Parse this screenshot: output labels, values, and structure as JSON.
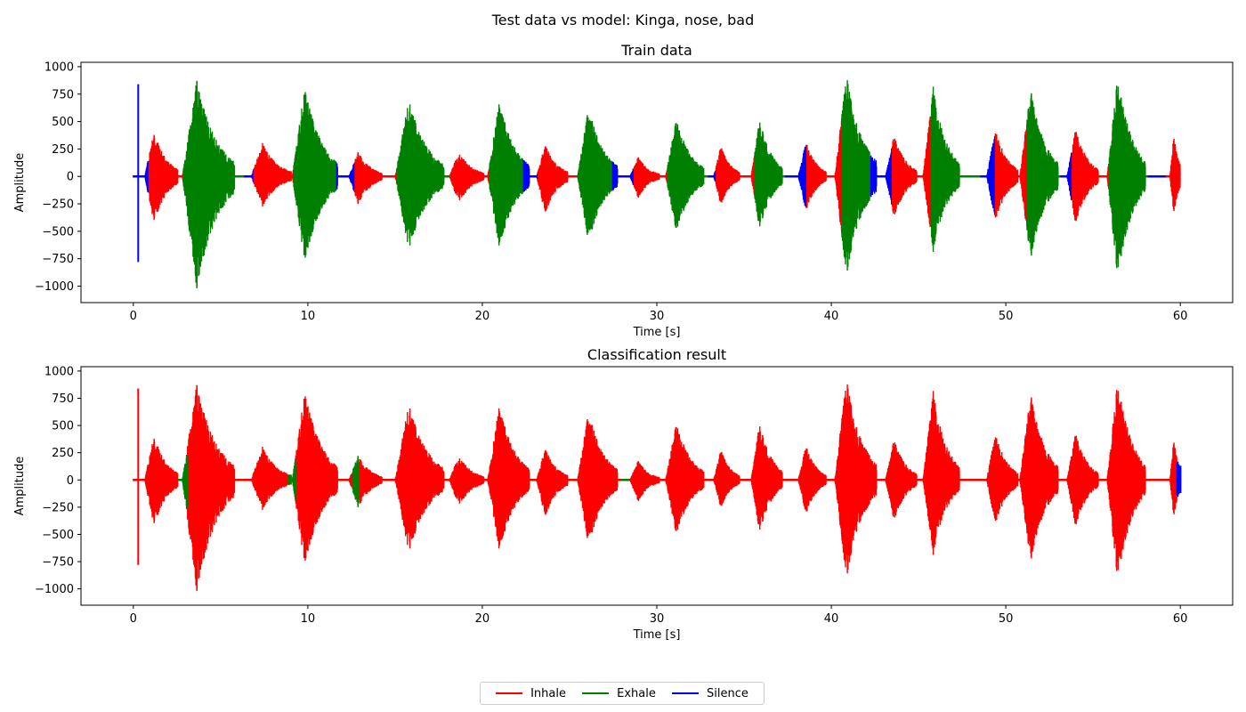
{
  "figure": {
    "title": "Test data vs model: Kinga, nose, bad"
  },
  "legend": {
    "placement": "bottom-center",
    "entries": [
      {
        "key": "inhale",
        "label": "Inhale",
        "color": "#ff0000"
      },
      {
        "key": "exhale",
        "label": "Exhale",
        "color": "#008000"
      },
      {
        "key": "silence",
        "label": "Silence",
        "color": "#0000ff"
      }
    ]
  },
  "chart_data": [
    {
      "type": "line",
      "title": "Train data",
      "xlabel": "Time [s]",
      "ylabel": "Amplitude",
      "xlim": [
        -3,
        63
      ],
      "ylim": [
        -1150,
        1040
      ],
      "xticks": [
        0,
        10,
        20,
        30,
        40,
        50,
        60
      ],
      "yticks": [
        1000,
        750,
        500,
        250,
        0,
        -250,
        -500,
        -750,
        -1000
      ],
      "grid": false,
      "duration": 60,
      "silence_bursts": [
        {
          "t": 0.28,
          "max": 840,
          "min": -780,
          "width": 0.08
        }
      ],
      "segments": [
        {
          "label": "silence",
          "start": 0,
          "end": 0.9
        },
        {
          "label": "inhale",
          "start": 0.9,
          "end": 2.9
        },
        {
          "label": "exhale",
          "start": 2.9,
          "end": 6.3
        },
        {
          "label": "silence",
          "start": 6.3,
          "end": 6.9
        },
        {
          "label": "inhale",
          "start": 6.9,
          "end": 9.2
        },
        {
          "label": "exhale",
          "start": 9.2,
          "end": 11.6
        },
        {
          "label": "silence",
          "start": 11.6,
          "end": 12.7
        },
        {
          "label": "inhale",
          "start": 12.7,
          "end": 15.1
        },
        {
          "label": "exhale",
          "start": 15.1,
          "end": 18.1
        },
        {
          "label": "inhale",
          "start": 18.1,
          "end": 20.4
        },
        {
          "label": "exhale",
          "start": 20.4,
          "end": 22.3
        },
        {
          "label": "silence",
          "start": 22.3,
          "end": 23.2
        },
        {
          "label": "inhale",
          "start": 23.2,
          "end": 25.4
        },
        {
          "label": "exhale",
          "start": 25.4,
          "end": 27.4
        },
        {
          "label": "silence",
          "start": 27.4,
          "end": 28.7
        },
        {
          "label": "inhale",
          "start": 28.7,
          "end": 30.6
        },
        {
          "label": "exhale",
          "start": 30.6,
          "end": 32.9
        },
        {
          "label": "silence",
          "start": 32.9,
          "end": 33.4
        },
        {
          "label": "inhale",
          "start": 33.4,
          "end": 35.6
        },
        {
          "label": "exhale",
          "start": 35.6,
          "end": 37.3
        },
        {
          "label": "silence",
          "start": 37.3,
          "end": 38.6
        },
        {
          "label": "inhale",
          "start": 38.6,
          "end": 40.6
        },
        {
          "label": "exhale",
          "start": 40.6,
          "end": 42.2
        },
        {
          "label": "silence",
          "start": 42.2,
          "end": 43.5
        },
        {
          "label": "inhale",
          "start": 43.5,
          "end": 45.7
        },
        {
          "label": "exhale",
          "start": 45.7,
          "end": 48.5
        },
        {
          "label": "silence",
          "start": 48.5,
          "end": 49.4
        },
        {
          "label": "inhale",
          "start": 49.4,
          "end": 51.2
        },
        {
          "label": "exhale",
          "start": 51.2,
          "end": 53.1
        },
        {
          "label": "silence",
          "start": 53.1,
          "end": 53.8
        },
        {
          "label": "inhale",
          "start": 53.8,
          "end": 55.9
        },
        {
          "label": "exhale",
          "start": 55.9,
          "end": 58.1
        },
        {
          "label": "silence",
          "start": 58.1,
          "end": 59.2
        },
        {
          "label": "inhale",
          "start": 59.2,
          "end": 60
        }
      ]
    },
    {
      "type": "line",
      "title": "Classification result",
      "xlabel": "Time [s]",
      "ylabel": "Amplitude",
      "xlim": [
        -3,
        63
      ],
      "ylim": [
        -1150,
        1040
      ],
      "xticks": [
        0,
        10,
        20,
        30,
        40,
        50,
        60
      ],
      "yticks": [
        1000,
        750,
        500,
        250,
        0,
        -250,
        -500,
        -750,
        -1000
      ],
      "grid": false,
      "duration": 60,
      "segments": [
        {
          "label": "inhale",
          "start": 0,
          "end": 2.6
        },
        {
          "label": "exhale",
          "start": 2.6,
          "end": 3.1
        },
        {
          "label": "inhale",
          "start": 3.1,
          "end": 8.9
        },
        {
          "label": "exhale",
          "start": 8.9,
          "end": 9.3
        },
        {
          "label": "inhale",
          "start": 9.3,
          "end": 12.6
        },
        {
          "label": "exhale",
          "start": 12.6,
          "end": 12.9
        },
        {
          "label": "inhale",
          "start": 12.9,
          "end": 28.0
        },
        {
          "label": "exhale",
          "start": 28.0,
          "end": 28.4
        },
        {
          "label": "inhale",
          "start": 28.4,
          "end": 59.8
        },
        {
          "label": "silence",
          "start": 59.8,
          "end": 60
        }
      ]
    }
  ],
  "bursts": [
    {
      "t": 1.6,
      "w": 1.9,
      "max": 430,
      "min": -450
    },
    {
      "t": 4.3,
      "w": 3.0,
      "max": 885,
      "min": -1035
    },
    {
      "t": 7.9,
      "w": 2.3,
      "max": 310,
      "min": -280
    },
    {
      "t": 10.4,
      "w": 2.6,
      "max": 830,
      "min": -800
    },
    {
      "t": 13.3,
      "w": 1.9,
      "max": 230,
      "min": -260
    },
    {
      "t": 16.4,
      "w": 2.8,
      "max": 720,
      "min": -690
    },
    {
      "t": 19.1,
      "w": 2.0,
      "max": 230,
      "min": -250
    },
    {
      "t": 21.5,
      "w": 2.4,
      "max": 700,
      "min": -670
    },
    {
      "t": 24.0,
      "w": 1.8,
      "max": 300,
      "min": -350
    },
    {
      "t": 26.6,
      "w": 2.3,
      "max": 650,
      "min": -620
    },
    {
      "t": 29.3,
      "w": 1.7,
      "max": 180,
      "min": -200
    },
    {
      "t": 31.6,
      "w": 2.2,
      "max": 540,
      "min": -520
    },
    {
      "t": 34.0,
      "w": 1.5,
      "max": 280,
      "min": -260
    },
    {
      "t": 36.3,
      "w": 1.8,
      "max": 540,
      "min": -500
    },
    {
      "t": 38.9,
      "w": 1.6,
      "max": 320,
      "min": -320
    },
    {
      "t": 41.4,
      "w": 2.4,
      "max": 950,
      "min": -930
    },
    {
      "t": 44.0,
      "w": 1.8,
      "max": 380,
      "min": -380
    },
    {
      "t": 46.3,
      "w": 2.1,
      "max": 820,
      "min": -690
    },
    {
      "t": 49.8,
      "w": 1.8,
      "max": 440,
      "min": -420
    },
    {
      "t": 51.9,
      "w": 2.2,
      "max": 820,
      "min": -780
    },
    {
      "t": 54.4,
      "w": 1.8,
      "max": 440,
      "min": -440
    },
    {
      "t": 56.9,
      "w": 2.2,
      "max": 930,
      "min": -940
    },
    {
      "t": 59.8,
      "w": 0.8,
      "max": 380,
      "min": -350
    }
  ]
}
